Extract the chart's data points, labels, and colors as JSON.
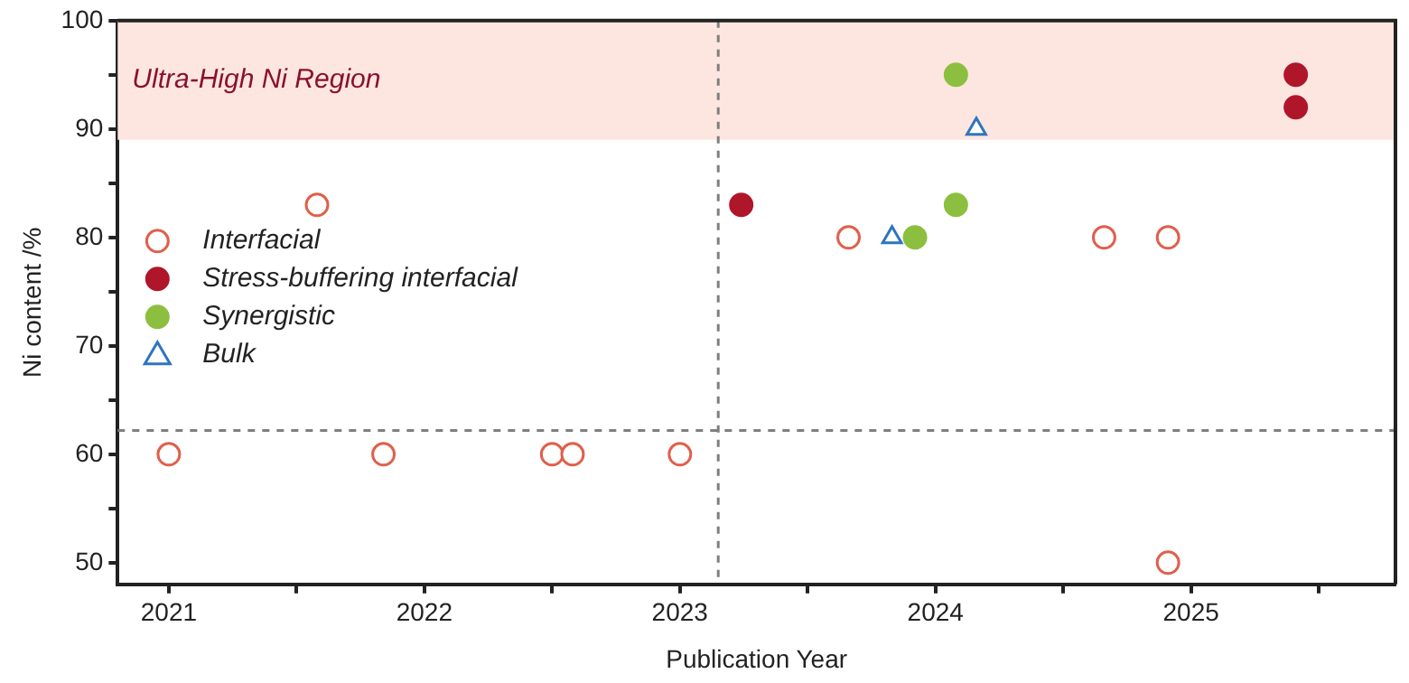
{
  "chart_data": {
    "type": "scatter",
    "xlabel": "Publication Year",
    "ylabel": "Ni content /%",
    "xlim": [
      2020.8,
      2025.8
    ],
    "xticks": [
      2021,
      {
        "value": 2021.5,
        "label": null
      },
      2022,
      {
        "value": 2022.5,
        "label": null
      },
      2023,
      {
        "value": 2023.5,
        "label": null
      },
      2024,
      {
        "value": 2024.5,
        "label": null
      },
      2025,
      {
        "value": 2025.5,
        "label": null
      }
    ],
    "ylim": [
      48,
      100
    ],
    "yticks": [
      50,
      {
        "value": 55,
        "label": null
      },
      60,
      {
        "value": 65,
        "label": null
      },
      70,
      {
        "value": 75,
        "label": null
      },
      80,
      {
        "value": 85,
        "label": null
      },
      90,
      {
        "value": 95,
        "label": null
      },
      100
    ],
    "legend": "left",
    "grid": false,
    "series": [
      {
        "name": "Interfacial",
        "color": "#e0604c",
        "marker": "circle-open",
        "x": [
          2021.0,
          2021.58,
          2021.84,
          2022.5,
          2022.58,
          2023.0,
          2023.66,
          2024.66,
          2024.91,
          2024.91
        ],
        "values": [
          60,
          83,
          60,
          60,
          60,
          60,
          80,
          80,
          80,
          50
        ]
      },
      {
        "name": "Stress-buffering interfacial",
        "color": "#b0162a",
        "marker": "circle",
        "x": [
          2023.24,
          2025.41,
          2025.41
        ],
        "values": [
          83,
          95,
          92
        ]
      },
      {
        "name": "Synergistic",
        "color": "#8cbf3f",
        "marker": "circle",
        "x": [
          2023.92,
          2024.08,
          2024.08
        ],
        "values": [
          80,
          95,
          83
        ]
      },
      {
        "name": "Bulk",
        "color": "#2e75c0",
        "marker": "triangle-open",
        "x": [
          2023.83,
          2024.16
        ],
        "values": [
          80,
          90
        ]
      }
    ],
    "bands": [
      {
        "axis": "y",
        "from": 89,
        "to": 100,
        "label": "Ultra-High Ni Region",
        "color": "#fde6df"
      }
    ],
    "ref_lines": [
      {
        "axis": "y",
        "value": 62.2,
        "line_style": "dashed",
        "color": "#7f7f7f"
      },
      {
        "axis": "x",
        "value": 2023.15,
        "line_style": "dashed",
        "color": "#7f7f7f"
      }
    ]
  }
}
